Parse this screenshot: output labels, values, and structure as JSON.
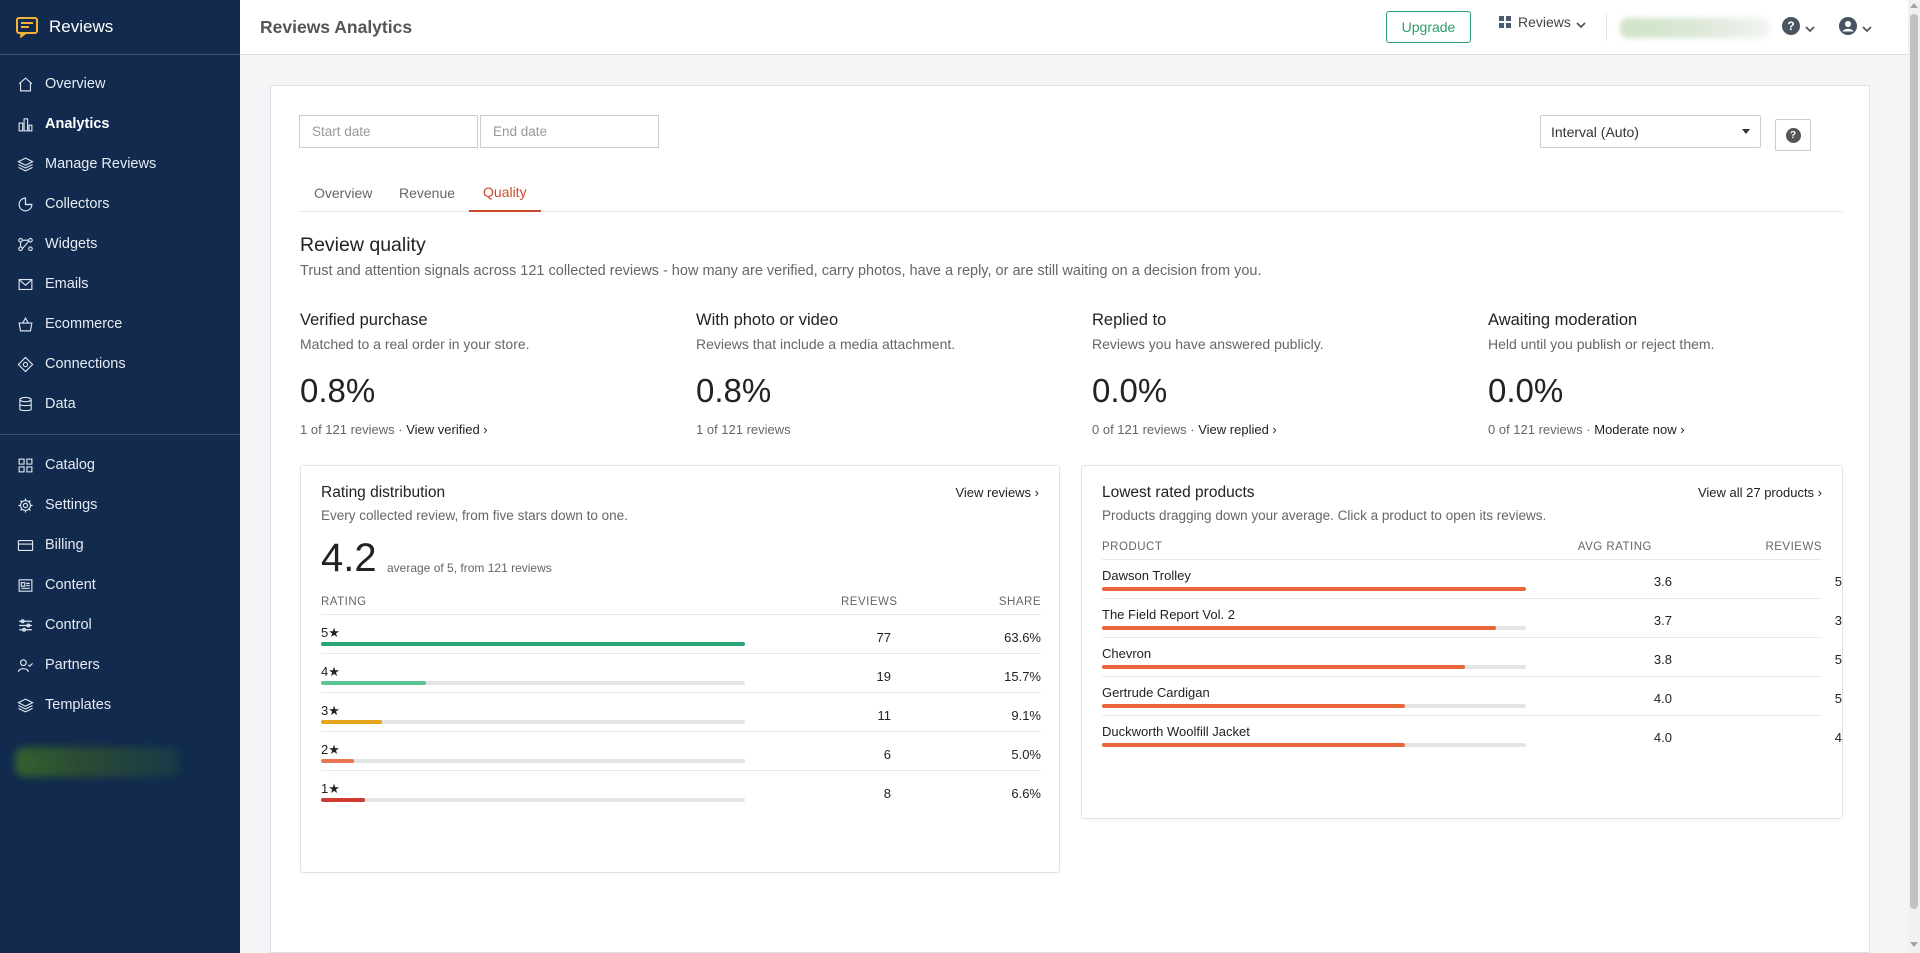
{
  "app": {
    "name": "Reviews",
    "page_title": "Reviews Analytics"
  },
  "sidebar": {
    "group1": [
      {
        "label": "Overview",
        "icon": "home-icon"
      },
      {
        "label": "Analytics",
        "icon": "bar-chart-icon",
        "active": true
      },
      {
        "label": "Manage Reviews",
        "icon": "layers-icon"
      },
      {
        "label": "Collectors",
        "icon": "pie-icon"
      },
      {
        "label": "Widgets",
        "icon": "nodes-icon"
      },
      {
        "label": "Emails",
        "icon": "mail-icon"
      },
      {
        "label": "Ecommerce",
        "icon": "basket-icon"
      },
      {
        "label": "Connections",
        "icon": "connections-icon"
      },
      {
        "label": "Data",
        "icon": "database-icon"
      }
    ],
    "group2": [
      {
        "label": "Catalog",
        "icon": "grid-icon"
      },
      {
        "label": "Settings",
        "icon": "gear-icon"
      },
      {
        "label": "Billing",
        "icon": "card-icon"
      },
      {
        "label": "Content",
        "icon": "content-icon"
      },
      {
        "label": "Control",
        "icon": "sliders-icon"
      },
      {
        "label": "Partners",
        "icon": "partners-icon"
      },
      {
        "label": "Templates",
        "icon": "layers-icon"
      }
    ]
  },
  "header": {
    "upgrade_label": "Upgrade",
    "apps_label": "Reviews"
  },
  "filters": {
    "start_placeholder": "Start date",
    "end_placeholder": "End date",
    "interval_value": "Interval (Auto)"
  },
  "tabs": [
    {
      "label": "Overview"
    },
    {
      "label": "Revenue"
    },
    {
      "label": "Quality",
      "active": true
    }
  ],
  "quality": {
    "title": "Review quality",
    "description": "Trust and attention signals across 121 collected reviews - how many are verified, carry photos, have a reply, or are still waiting on a decision from you.",
    "metrics": [
      {
        "title": "Verified purchase",
        "subtitle": "Matched to a real order in your store.",
        "value": "0.8%",
        "footer": "1 of 121 reviews",
        "link": "View verified ›"
      },
      {
        "title": "With photo or video",
        "subtitle": "Reviews that include a media attachment.",
        "value": "0.8%",
        "footer": "1 of 121 reviews",
        "link": ""
      },
      {
        "title": "Replied to",
        "subtitle": "Reviews you have answered publicly.",
        "value": "0.0%",
        "footer": "0 of 121 reviews",
        "link": "View replied ›"
      },
      {
        "title": "Awaiting moderation",
        "subtitle": "Held until you publish or reject them.",
        "value": "0.0%",
        "footer": "0 of 121 reviews",
        "link": "Moderate now ›"
      }
    ],
    "separator": " · "
  },
  "rating_distribution": {
    "title": "Rating distribution",
    "link": "View reviews ›",
    "description": "Every collected review, from five stars down to one.",
    "average": "4.2",
    "average_note": "average of 5, from 121 reviews",
    "columns": {
      "rating": "RATING",
      "reviews": "REVIEWS",
      "share": "SHARE"
    },
    "rows": [
      {
        "label": "5★",
        "reviews": "77",
        "share": "63.6%",
        "fraction": 1.0,
        "color": "#2aa776"
      },
      {
        "label": "4★",
        "reviews": "19",
        "share": "15.7%",
        "fraction": 0.247,
        "color": "#5cc493"
      },
      {
        "label": "3★",
        "reviews": "11",
        "share": "9.1%",
        "fraction": 0.143,
        "color": "#e8a41c"
      },
      {
        "label": "2★",
        "reviews": "6",
        "share": "5.0%",
        "fraction": 0.078,
        "color": "#ea7552"
      },
      {
        "label": "1★",
        "reviews": "8",
        "share": "6.6%",
        "fraction": 0.104,
        "color": "#d13a32"
      }
    ]
  },
  "lowest_rated": {
    "title": "Lowest rated products",
    "link": "View all 27 products ›",
    "description": "Products dragging down your average. Click a product to open its reviews.",
    "columns": {
      "product": "PRODUCT",
      "avg_rating": "AVG RATING",
      "reviews": "REVIEWS"
    },
    "bar_color": "#e8663a",
    "rows": [
      {
        "product": "Dawson Trolley",
        "avg_rating": "3.6",
        "reviews": "5",
        "fraction": 1.0
      },
      {
        "product": "The Field Report Vol. 2",
        "avg_rating": "3.7",
        "reviews": "3",
        "fraction": 0.929
      },
      {
        "product": "Chevron",
        "avg_rating": "3.8",
        "reviews": "5",
        "fraction": 0.857
      },
      {
        "product": "Gertrude Cardigan",
        "avg_rating": "4.0",
        "reviews": "5",
        "fraction": 0.714
      },
      {
        "product": "Duckworth Woolfill Jacket",
        "avg_rating": "4.0",
        "reviews": "4",
        "fraction": 0.714
      }
    ]
  }
}
